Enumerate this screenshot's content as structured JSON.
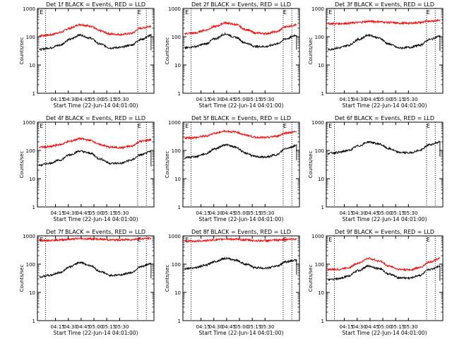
{
  "chart_data": [
    {
      "type": "line",
      "title": "Det 1f BLACK = Events, RED = LLD",
      "xlabel": "Start Time (22-Jun-14 04:01:00)",
      "ylabel": "Counts/sec",
      "x_ticks": [
        "04:15",
        "04:30",
        "04:45",
        "05:00",
        "05:15",
        "05:30"
      ],
      "y_ticks": [
        "1",
        "10",
        "100",
        "1000"
      ],
      "yscale": "log",
      "ylim": [
        1,
        1000
      ],
      "annotations": [
        "E",
        "E"
      ],
      "series": [
        {
          "color": "#ff0000",
          "values": [
            110,
            115,
            140,
            200,
            270,
            240,
            160,
            125,
            120,
            130,
            200,
            240
          ]
        },
        {
          "color": "#000000",
          "values": [
            35,
            40,
            50,
            80,
            115,
            90,
            55,
            40,
            42,
            50,
            80,
            110
          ]
        }
      ]
    },
    {
      "type": "line",
      "title": "Det 2f BLACK = Events, RED = LLD",
      "xlabel": "Start Time (22-Jun-14 04:01:00)",
      "ylabel": "Counts/sec",
      "x_ticks": [
        "04:15",
        "04:30",
        "04:45",
        "05:00",
        "05:15",
        "05:30"
      ],
      "y_ticks": [
        "1",
        "10",
        "100",
        "1000"
      ],
      "yscale": "log",
      "ylim": [
        1,
        1000
      ],
      "annotations": [
        "E",
        "E"
      ],
      "series": [
        {
          "color": "#ff0000",
          "values": [
            130,
            135,
            170,
            230,
            310,
            270,
            180,
            135,
            130,
            150,
            230,
            260
          ]
        },
        {
          "color": "#000000",
          "values": [
            40,
            45,
            55,
            85,
            125,
            95,
            60,
            45,
            45,
            55,
            85,
            115
          ]
        }
      ]
    },
    {
      "type": "line",
      "title": "Det 3f BLACK = Events, RED = LLD",
      "xlabel": "Start Time (22-Jun-14 04:01:00)",
      "ylabel": "Counts/sec",
      "x_ticks": [
        "04:15",
        "04:30",
        "04:45",
        "05:00",
        "05:15",
        "05:30"
      ],
      "y_ticks": [
        "1",
        "10",
        "100",
        "1000"
      ],
      "yscale": "log",
      "ylim": [
        1,
        1000
      ],
      "annotations": [
        "E",
        "E"
      ],
      "series": [
        {
          "color": "#ff0000",
          "values": [
            290,
            290,
            300,
            320,
            350,
            340,
            320,
            300,
            300,
            320,
            360,
            380
          ]
        },
        {
          "color": "#000000",
          "values": [
            35,
            40,
            50,
            80,
            115,
            90,
            55,
            40,
            42,
            50,
            80,
            105
          ]
        }
      ]
    },
    {
      "type": "line",
      "title": "Det 4f BLACK = Events, RED = LLD",
      "xlabel": "Start Time (22-Jun-14 04:01:00)",
      "ylabel": "Counts/sec",
      "x_ticks": [
        "04:15",
        "04:30",
        "04:45",
        "05:00",
        "05:15",
        "05:30"
      ],
      "y_ticks": [
        "1",
        "10",
        "100",
        "1000"
      ],
      "yscale": "log",
      "ylim": [
        1,
        1000
      ],
      "annotations": [
        "E",
        "E"
      ],
      "series": [
        {
          "color": "#ff0000",
          "values": [
            130,
            135,
            160,
            210,
            260,
            230,
            160,
            130,
            125,
            140,
            210,
            240
          ]
        },
        {
          "color": "#000000",
          "values": [
            30,
            35,
            45,
            70,
            95,
            80,
            50,
            35,
            35,
            45,
            70,
            90
          ]
        }
      ]
    },
    {
      "type": "line",
      "title": "Det 5f BLACK = Events, RED = LLD",
      "xlabel": "Start Time (22-Jun-14 04:01:00)",
      "ylabel": "Counts/sec",
      "x_ticks": [
        "04:15",
        "04:30",
        "04:45",
        "05:00",
        "05:15",
        "05:30"
      ],
      "y_ticks": [
        "1",
        "10",
        "100",
        "1000"
      ],
      "yscale": "log",
      "ylim": [
        1,
        1000
      ],
      "annotations": [
        "E",
        "E"
      ],
      "series": [
        {
          "color": "#ff0000",
          "values": [
            280,
            285,
            320,
            410,
            480,
            450,
            350,
            290,
            285,
            320,
            420,
            450
          ]
        },
        {
          "color": "#000000",
          "values": [
            55,
            60,
            75,
            115,
            160,
            130,
            80,
            60,
            58,
            70,
            120,
            150
          ]
        }
      ]
    },
    {
      "type": "line",
      "title": "Det 6f BLACK = Events, RED = LLD",
      "xlabel": "Start Time (22-Jun-14 04:01:00)",
      "ylabel": "Counts/sec",
      "x_ticks": [
        "04:15",
        "04:30",
        "04:45",
        "05:00",
        "05:15",
        "05:30"
      ],
      "y_ticks": [
        "1",
        "10",
        "100",
        "1000"
      ],
      "yscale": "log",
      "ylim": [
        1,
        1000
      ],
      "annotations": [
        "E",
        "E"
      ],
      "series": [
        {
          "color": "#000000",
          "values": [
            80,
            85,
            100,
            145,
            200,
            170,
            115,
            85,
            82,
            100,
            160,
            200
          ]
        }
      ]
    },
    {
      "type": "line",
      "title": "Det 7f BLACK = Events, RED = LLD",
      "xlabel": "Start Time (22-Jun-14 04:01:00)",
      "ylabel": "Counts/sec",
      "x_ticks": [
        "04:15",
        "04:30",
        "04:45",
        "05:00",
        "05:15",
        "05:30"
      ],
      "y_ticks": [
        "1",
        "10",
        "100",
        "1000"
      ],
      "yscale": "log",
      "ylim": [
        1,
        1000
      ],
      "annotations": [
        "E",
        "E"
      ],
      "series": [
        {
          "color": "#ff0000",
          "values": [
            700,
            700,
            720,
            760,
            800,
            790,
            760,
            720,
            720,
            740,
            790,
            820
          ]
        },
        {
          "color": "#000000",
          "values": [
            35,
            40,
            50,
            80,
            115,
            90,
            55,
            40,
            42,
            50,
            80,
            105
          ]
        }
      ]
    },
    {
      "type": "line",
      "title": "Det 8f BLACK = Events, RED = LLD",
      "xlabel": "Start Time (22-Jun-14 04:01:00)",
      "ylabel": "Counts/sec",
      "x_ticks": [
        "04:15",
        "04:30",
        "04:45",
        "05:00",
        "05:15",
        "05:30"
      ],
      "y_ticks": [
        "1",
        "10",
        "100",
        "1000"
      ],
      "yscale": "log",
      "ylim": [
        1,
        1000
      ],
      "annotations": [
        "E",
        "E"
      ],
      "series": [
        {
          "color": "#ff0000",
          "values": [
            650,
            650,
            680,
            720,
            780,
            760,
            720,
            680,
            680,
            700,
            760,
            780
          ]
        },
        {
          "color": "#000000",
          "values": [
            70,
            75,
            90,
            125,
            160,
            140,
            100,
            75,
            72,
            85,
            120,
            140
          ]
        }
      ]
    },
    {
      "type": "line",
      "title": "Det 9f BLACK = Events, RED = LLD",
      "xlabel": "Start Time (22-Jun-14 04:01:00)",
      "ylabel": "Counts/sec",
      "x_ticks": [
        "04:15",
        "04:30",
        "04:45",
        "05:00",
        "05:15",
        "05:30"
      ],
      "y_ticks": [
        "1",
        "10",
        "100",
        "1000"
      ],
      "yscale": "log",
      "ylim": [
        1,
        1000
      ],
      "annotations": [
        "E",
        "E"
      ],
      "series": [
        {
          "color": "#ff0000",
          "values": [
            65,
            65,
            75,
            110,
            160,
            130,
            85,
            65,
            63,
            75,
            120,
            160
          ]
        },
        {
          "color": "#000000",
          "values": [
            28,
            30,
            38,
            60,
            85,
            70,
            45,
            33,
            32,
            40,
            65,
            85
          ]
        }
      ]
    }
  ]
}
